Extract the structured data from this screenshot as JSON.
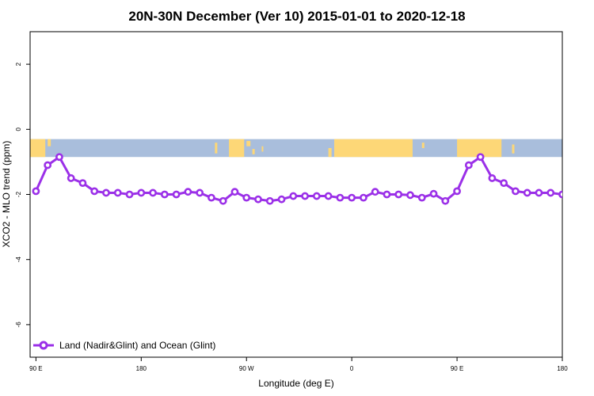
{
  "chart_data": {
    "type": "line",
    "title": "20N-30N December (Ver 10)   2015-01-01 to 2020-12-18",
    "xlabel": "Longitude (deg E)",
    "ylabel": "XCO2 - MLO trend (ppm)",
    "xlim": [
      85,
      540
    ],
    "ylim": [
      -7,
      3
    ],
    "x_ticks": [
      {
        "value": 90,
        "label": "90 E"
      },
      {
        "value": 180,
        "label": "180"
      },
      {
        "value": 270,
        "label": "90 W"
      },
      {
        "value": 360,
        "label": "0"
      },
      {
        "value": 450,
        "label": "90 E"
      },
      {
        "value": 540,
        "label": "180"
      }
    ],
    "y_ticks": [
      {
        "value": 2,
        "label": "2"
      },
      {
        "value": 0,
        "label": "0"
      },
      {
        "value": -2,
        "label": "-2"
      },
      {
        "value": -4,
        "label": "-4"
      },
      {
        "value": -6,
        "label": "-6"
      }
    ],
    "map_band": {
      "y_top": -0.3,
      "y_bottom": -0.85,
      "ocean_color": "#a9bedc",
      "land_color": "#fdd777"
    },
    "series": [
      {
        "name": "Land (Nadir&Glint) and Ocean (Glint)",
        "color": "#9b30e8",
        "x": [
          90,
          100,
          110,
          120,
          130,
          140,
          150,
          160,
          170,
          180,
          190,
          200,
          210,
          220,
          230,
          240,
          250,
          260,
          270,
          280,
          290,
          300,
          310,
          320,
          330,
          340,
          350,
          360,
          370,
          380,
          390,
          400,
          410,
          420,
          430,
          440,
          450,
          460,
          470,
          480,
          490,
          500,
          510,
          520,
          530,
          540
        ],
        "y": [
          -1.9,
          -1.1,
          -0.85,
          -1.5,
          -1.65,
          -1.9,
          -1.95,
          -1.95,
          -2.0,
          -1.95,
          -1.95,
          -2.0,
          -2.0,
          -1.92,
          -1.95,
          -2.1,
          -2.2,
          -1.92,
          -2.1,
          -2.15,
          -2.2,
          -2.15,
          -2.05,
          -2.05,
          -2.05,
          -2.05,
          -2.1,
          -2.1,
          -2.1,
          -1.92,
          -2.0,
          -2.0,
          -2.02,
          -2.1,
          -1.98,
          -2.2,
          -1.9,
          -1.1,
          -0.85,
          -1.5,
          -1.65,
          -1.9,
          -1.95,
          -1.95,
          -1.95,
          -2.0
        ]
      }
    ],
    "legend": {
      "position": "bottom-left",
      "label": "Land (Nadir&Glint) and Ocean (Glint)"
    },
    "grid": false
  }
}
